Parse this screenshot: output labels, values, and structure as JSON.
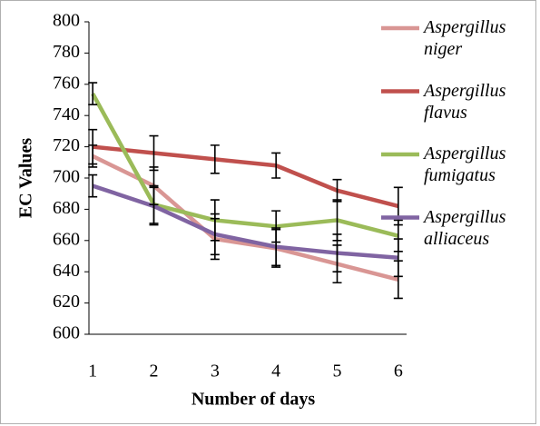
{
  "chart_data": {
    "type": "line",
    "x_label": "Number of days",
    "y_label": "EC Values",
    "categories": [
      "1",
      "2",
      "3",
      "4",
      "5",
      "6"
    ],
    "ylim": [
      600,
      800
    ],
    "yticks": [
      600,
      620,
      640,
      660,
      680,
      700,
      720,
      740,
      760,
      780,
      800
    ],
    "error_bar_color": "#000000",
    "series": [
      {
        "name": "Aspergillus niger",
        "color": "#d99694",
        "values": [
          714,
          695,
          661,
          655,
          645,
          635
        ],
        "errors": [
          7,
          12,
          13,
          12,
          12,
          12
        ]
      },
      {
        "name": "Aspergillus flavus",
        "color": "#c0504d",
        "values": [
          720,
          716,
          712,
          708,
          692,
          682
        ],
        "errors": [
          11,
          11,
          9,
          8,
          7,
          12
        ]
      },
      {
        "name": "Aspergillus fumigatus",
        "color": "#9bbb59",
        "values": [
          754,
          683,
          673,
          669,
          673,
          663
        ],
        "errors": [
          7,
          12,
          13,
          10,
          13,
          10
        ]
      },
      {
        "name": "Aspergillus alliaceus",
        "color": "#8064a2",
        "values": [
          695,
          682,
          664,
          656,
          652,
          649
        ],
        "errors": [
          7,
          12,
          13,
          12,
          12,
          12
        ]
      }
    ]
  }
}
